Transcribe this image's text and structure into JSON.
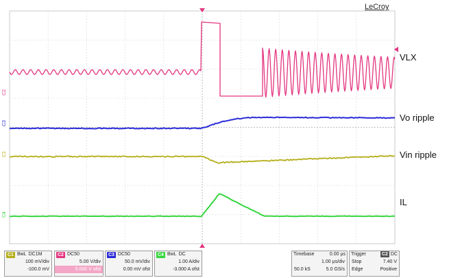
{
  "brand": "LeCroy",
  "colors": {
    "vlx": "#e3347f",
    "vo": "#2a2ad8",
    "vin": "#b3ad16",
    "il": "#35d63d",
    "grid": "#c9c9c9",
    "trigger_marker": "#e3347f"
  },
  "waveform_labels": {
    "vlx": "VLX",
    "vo": "Vo ripple",
    "vin": "Vin ripple",
    "il": "IL"
  },
  "channel_markers": [
    "C2",
    "C3",
    "C1",
    "C4"
  ],
  "channels": [
    {
      "id": "C1",
      "coupling": "DC1M",
      "bw": "BwL",
      "scale": "100 mV/div",
      "offset": "-100.0 mV",
      "color": "#b3ad16"
    },
    {
      "id": "C2",
      "coupling": "DC50",
      "bw": "",
      "scale": "5.00 V/div",
      "offset": "5.000 V ofst",
      "color": "#e3347f"
    },
    {
      "id": "C3",
      "coupling": "DC50",
      "bw": "",
      "scale": "50.0 mV/div",
      "offset": "0.00 mV ofst",
      "color": "#2a2ad8"
    },
    {
      "id": "C4",
      "coupling": "DC",
      "bw": "BwL",
      "scale": "1.00 A/div",
      "offset": "-3.000 A ofst",
      "color": "#35d63d"
    }
  ],
  "timebase": {
    "label": "Timebase",
    "delay": "0.00 µs",
    "per_div": "1.00 µs/div",
    "samples": "50.0 kS",
    "rate": "5.0 GS/s"
  },
  "trigger": {
    "label": "Trigger",
    "channel": "C2",
    "coupling": "DC",
    "mode": "Stop",
    "level": "7.40 V",
    "type": "Edge",
    "slope": "Positive"
  }
}
